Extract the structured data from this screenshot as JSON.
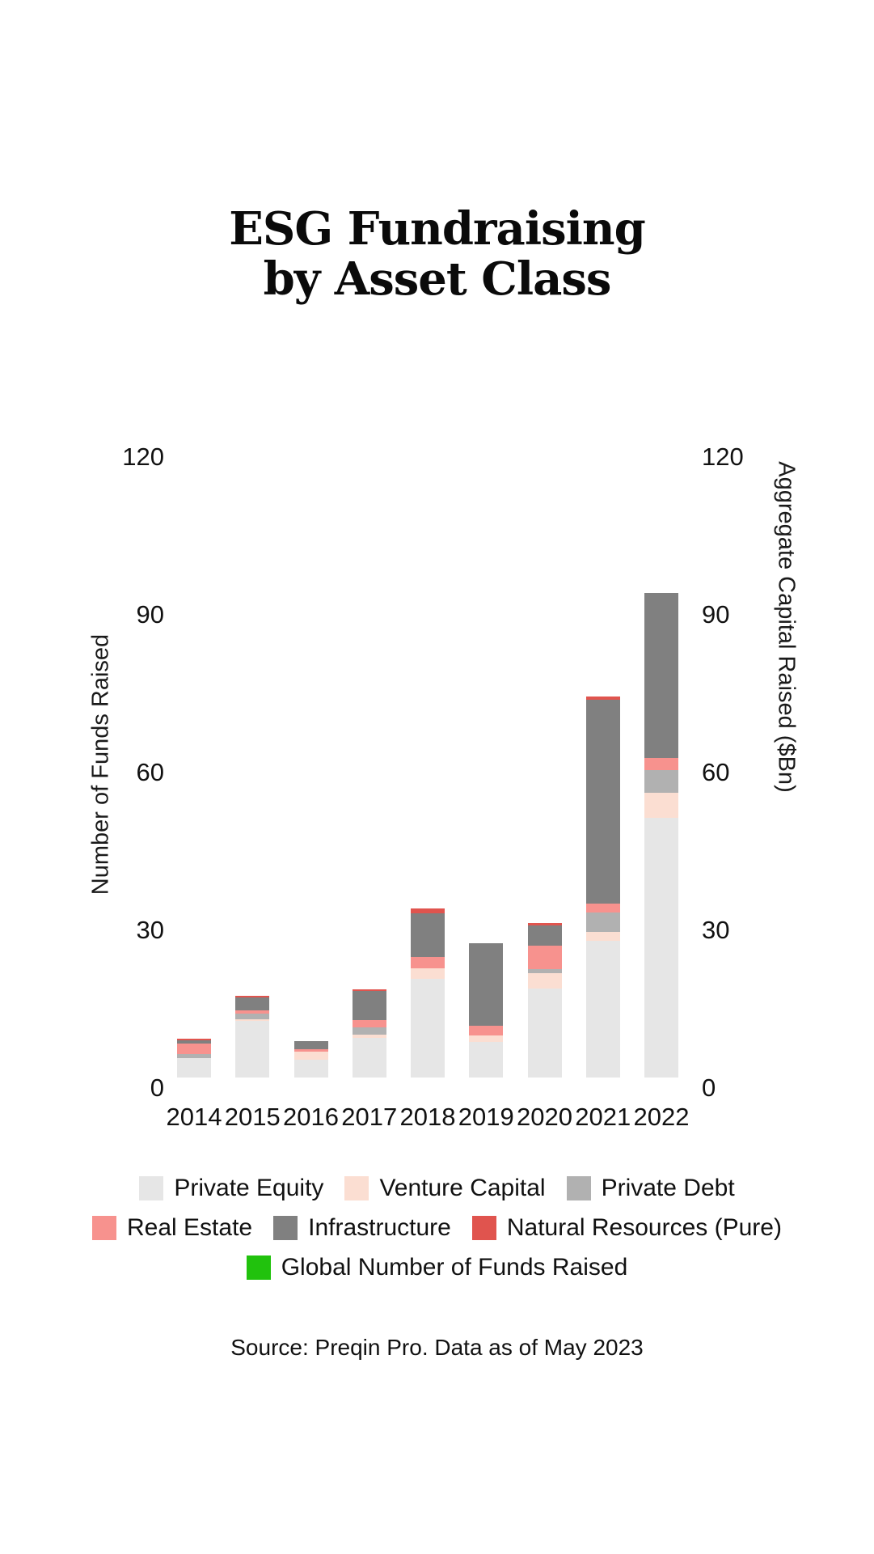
{
  "title": "ESG Fundraising by Asset Class",
  "title_lines": [
    "ESG Fundraising",
    "by Asset Class"
  ],
  "source": "Source: Preqin Pro. Data as of May 2023",
  "colors": {
    "private_equity": "#e6e6e6",
    "venture_capital": "#fbded2",
    "private_debt": "#b1b1b1",
    "real_estate": "#f7928e",
    "infrastructure": "#808080",
    "natural_resources": "#e0544e",
    "global_funds_raised": "#21c20d"
  },
  "chart_data": {
    "type": "bar",
    "stacked": true,
    "title": "ESG Fundraising by Asset Class",
    "categories": [
      "2014",
      "2015",
      "2016",
      "2017",
      "2018",
      "2019",
      "2020",
      "2021",
      "2022"
    ],
    "series": [
      {
        "name": "Private Equity",
        "color_key": "private_equity",
        "values": [
          3.7,
          10.8,
          3.4,
          7.5,
          18.8,
          6.8,
          16.9,
          26.0,
          49.4
        ]
      },
      {
        "name": "Venture Capital",
        "color_key": "venture_capital",
        "values": [
          0,
          0.3,
          1.5,
          0.6,
          2.0,
          1.2,
          2.9,
          1.7,
          4.8
        ]
      },
      {
        "name": "Private Debt",
        "color_key": "private_debt",
        "values": [
          0.8,
          1.1,
          0,
          1.5,
          0,
          0,
          0.8,
          3.7,
          4.2
        ]
      },
      {
        "name": "Real Estate",
        "color_key": "real_estate",
        "values": [
          2.0,
          0.5,
          0.5,
          1.4,
          2.2,
          1.8,
          4.5,
          1.7,
          2.3
        ]
      },
      {
        "name": "Infrastructure",
        "color_key": "infrastructure",
        "values": [
          0.6,
          2.5,
          1.5,
          5.4,
          8.2,
          15.8,
          3.8,
          38.8,
          31.5
        ]
      },
      {
        "name": "Natural Resources (Pure)",
        "color_key": "natural_resources",
        "values": [
          0.3,
          0.3,
          0,
          0.3,
          0.9,
          0,
          0.5,
          0.5,
          0
        ]
      }
    ],
    "totals": [
      7.4,
      15.5,
      6.9,
      16.7,
      32.1,
      25.6,
      29.4,
      72.4,
      92.2
    ],
    "left_ylabel": "Number of Funds Raised",
    "right_ylabel": "Aggregate Capital Raised ($Bn)",
    "xlabel": "",
    "ylim": [
      0,
      120
    ],
    "yticks": [
      0,
      30,
      60,
      90,
      120
    ],
    "grid": false,
    "legend_position": "bottom",
    "legend_rows": [
      [
        {
          "label": "Private Equity",
          "color_key": "private_equity"
        },
        {
          "label": "Venture Capital",
          "color_key": "venture_capital"
        },
        {
          "label": "Private Debt",
          "color_key": "private_debt"
        }
      ],
      [
        {
          "label": "Real Estate",
          "color_key": "real_estate"
        },
        {
          "label": "Infrastructure",
          "color_key": "infrastructure"
        },
        {
          "label": "Natural Resources (Pure)",
          "color_key": "natural_resources"
        }
      ],
      [
        {
          "label": "Global Number of Funds Raised",
          "color_key": "global_funds_raised"
        }
      ]
    ]
  }
}
